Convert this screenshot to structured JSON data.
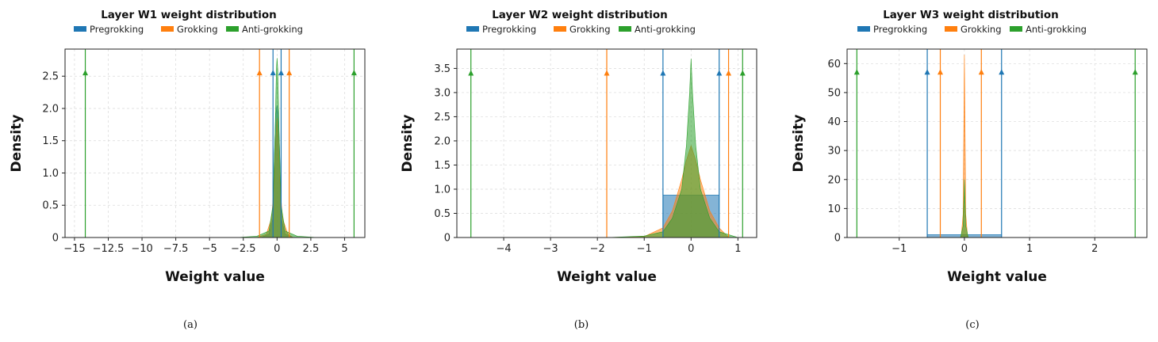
{
  "colors": {
    "pregrokking": "#1f77b4",
    "grokking": "#ff7f0e",
    "anti_grokking": "#2ca02c",
    "grid": "#d9d9d9",
    "axis": "#222222"
  },
  "chart_data": [
    {
      "type": "area",
      "title": "Layer W1 weight distribution",
      "xlabel": "Weight value",
      "ylabel": "Density",
      "caption": "(a)",
      "xlim": [
        -15.7,
        6.5
      ],
      "ylim": [
        0,
        2.92
      ],
      "xticks": [
        -15,
        -12.5,
        -10,
        -7.5,
        -5,
        -2.5,
        0,
        2.5,
        5
      ],
      "xticklabels": [
        "−15",
        "−12.5",
        "−10",
        "−7.5",
        "−5",
        "−2.5",
        "0",
        "2.5",
        "5"
      ],
      "yticks": [
        0,
        0.5,
        1.0,
        1.5,
        2.0,
        2.5
      ],
      "yticklabels": [
        "0",
        "0.5",
        "1.0",
        "1.5",
        "2.0",
        "2.5"
      ],
      "grid": true,
      "legend_position": "top",
      "legend": [
        "Pregrokking",
        "Grokking",
        "Anti-grokking"
      ],
      "series": [
        {
          "name": "Pregrokking",
          "color": "#1f77b4",
          "range_markers": [
            -0.3,
            0.3
          ],
          "marker_y": 2.55,
          "density": {
            "x": [
              -1.2,
              -0.6,
              -0.3,
              -0.2,
              -0.1,
              0,
              0.1,
              0.2,
              0.3,
              0.6,
              1.2
            ],
            "y": [
              0,
              0.05,
              0.3,
              1.3,
              1.9,
              2.05,
              1.9,
              1.3,
              0.3,
              0.05,
              0
            ]
          }
        },
        {
          "name": "Grokking",
          "color": "#ff7f0e",
          "range_markers": [
            -1.3,
            0.9
          ],
          "marker_y": 2.55,
          "density": {
            "x": [
              -1.5,
              -0.8,
              -0.4,
              -0.2,
              -0.1,
              0,
              0.1,
              0.2,
              0.4,
              0.8,
              1.2
            ],
            "y": [
              0,
              0.05,
              0.3,
              0.9,
              1.5,
              1.85,
              1.5,
              0.9,
              0.3,
              0.05,
              0
            ]
          }
        },
        {
          "name": "Anti-grokking",
          "color": "#2ca02c",
          "range_markers": [
            -14.2,
            5.7
          ],
          "marker_y": 2.55,
          "density": {
            "x": [
              -3,
              -1.5,
              -0.6,
              -0.3,
              -0.15,
              -0.05,
              0,
              0.05,
              0.15,
              0.3,
              0.6,
              1.5,
              3
            ],
            "y": [
              0,
              0.02,
              0.1,
              0.5,
              1.6,
              2.6,
              2.78,
              2.6,
              1.6,
              0.5,
              0.1,
              0.02,
              0
            ]
          }
        }
      ]
    },
    {
      "type": "area",
      "title": "Layer W2 weight distribution",
      "xlabel": "Weight value",
      "ylabel": "Density",
      "caption": "(b)",
      "xlim": [
        -5.0,
        1.4
      ],
      "ylim": [
        0,
        3.9
      ],
      "xticks": [
        -4,
        -3,
        -2,
        -1,
        0,
        1
      ],
      "xticklabels": [
        "−4",
        "−3",
        "−2",
        "−1",
        "0",
        "1"
      ],
      "yticks": [
        0,
        0.5,
        1.0,
        1.5,
        2.0,
        2.5,
        3.0,
        3.5
      ],
      "yticklabels": [
        "0",
        "0.5",
        "1.0",
        "1.5",
        "2.0",
        "2.5",
        "3.0",
        "3.5"
      ],
      "grid": true,
      "legend_position": "top",
      "legend": [
        "Pregrokking",
        "Grokking",
        "Anti-grokking"
      ],
      "series": [
        {
          "name": "Pregrokking",
          "color": "#1f77b4",
          "range_markers": [
            -0.6,
            0.6
          ],
          "marker_y": 3.4,
          "density": {
            "x": [
              -0.6,
              -0.6,
              0.6,
              0.6
            ],
            "y": [
              0,
              0.88,
              0.88,
              0
            ]
          }
        },
        {
          "name": "Grokking",
          "color": "#ff7f0e",
          "range_markers": [
            -1.8,
            0.8
          ],
          "marker_y": 3.4,
          "density": {
            "x": [
              -1.8,
              -1.0,
              -0.6,
              -0.4,
              -0.2,
              -0.1,
              0,
              0.1,
              0.2,
              0.4,
              0.6,
              0.8
            ],
            "y": [
              0,
              0.02,
              0.2,
              0.55,
              1.2,
              1.6,
              1.9,
              1.6,
              1.2,
              0.55,
              0.2,
              0
            ]
          }
        },
        {
          "name": "Anti-grokking",
          "color": "#2ca02c",
          "range_markers": [
            -4.7,
            1.1
          ],
          "marker_y": 3.4,
          "density": {
            "x": [
              -1.8,
              -1.0,
              -0.6,
              -0.4,
              -0.2,
              -0.1,
              -0.03,
              0,
              0.03,
              0.1,
              0.2,
              0.4,
              0.6,
              1.0
            ],
            "y": [
              0,
              0.03,
              0.12,
              0.4,
              1.0,
              1.9,
              3.0,
              3.7,
              3.0,
              1.9,
              1.0,
              0.4,
              0.12,
              0
            ]
          }
        }
      ]
    },
    {
      "type": "area",
      "title": "Layer W3 weight distribution",
      "xlabel": "Weight value",
      "ylabel": "Density",
      "caption": "(c)",
      "xlim": [
        -1.8,
        2.8
      ],
      "ylim": [
        0,
        65
      ],
      "xticks": [
        -1,
        0,
        1,
        2
      ],
      "xticklabels": [
        "−1",
        "0",
        "1",
        "2"
      ],
      "yticks": [
        0,
        10,
        20,
        30,
        40,
        50,
        60
      ],
      "yticklabels": [
        "0",
        "10",
        "20",
        "30",
        "40",
        "50",
        "60"
      ],
      "grid": true,
      "legend_position": "top",
      "legend": [
        "Pregrokking",
        "Grokking",
        "Anti-grokking"
      ],
      "series": [
        {
          "name": "Pregrokking",
          "color": "#1f77b4",
          "range_markers": [
            -0.57,
            0.57
          ],
          "marker_y": 57,
          "density": {
            "x": [
              -0.57,
              -0.57,
              0.57,
              0.57
            ],
            "y": [
              0,
              1.0,
              1.0,
              0
            ]
          }
        },
        {
          "name": "Grokking",
          "color": "#ff7f0e",
          "range_markers": [
            -0.37,
            0.26
          ],
          "marker_y": 57,
          "density": {
            "x": [
              -0.05,
              -0.02,
              0,
              0.02,
              0.05
            ],
            "y": [
              0,
              8,
              63,
              8,
              0
            ]
          }
        },
        {
          "name": "Anti-grokking",
          "color": "#2ca02c",
          "range_markers": [
            -1.65,
            2.62
          ],
          "marker_y": 57,
          "density": {
            "x": [
              -0.06,
              -0.02,
              0,
              0.02,
              0.06
            ],
            "y": [
              0,
              4,
              20,
              4,
              0
            ]
          }
        }
      ]
    }
  ]
}
